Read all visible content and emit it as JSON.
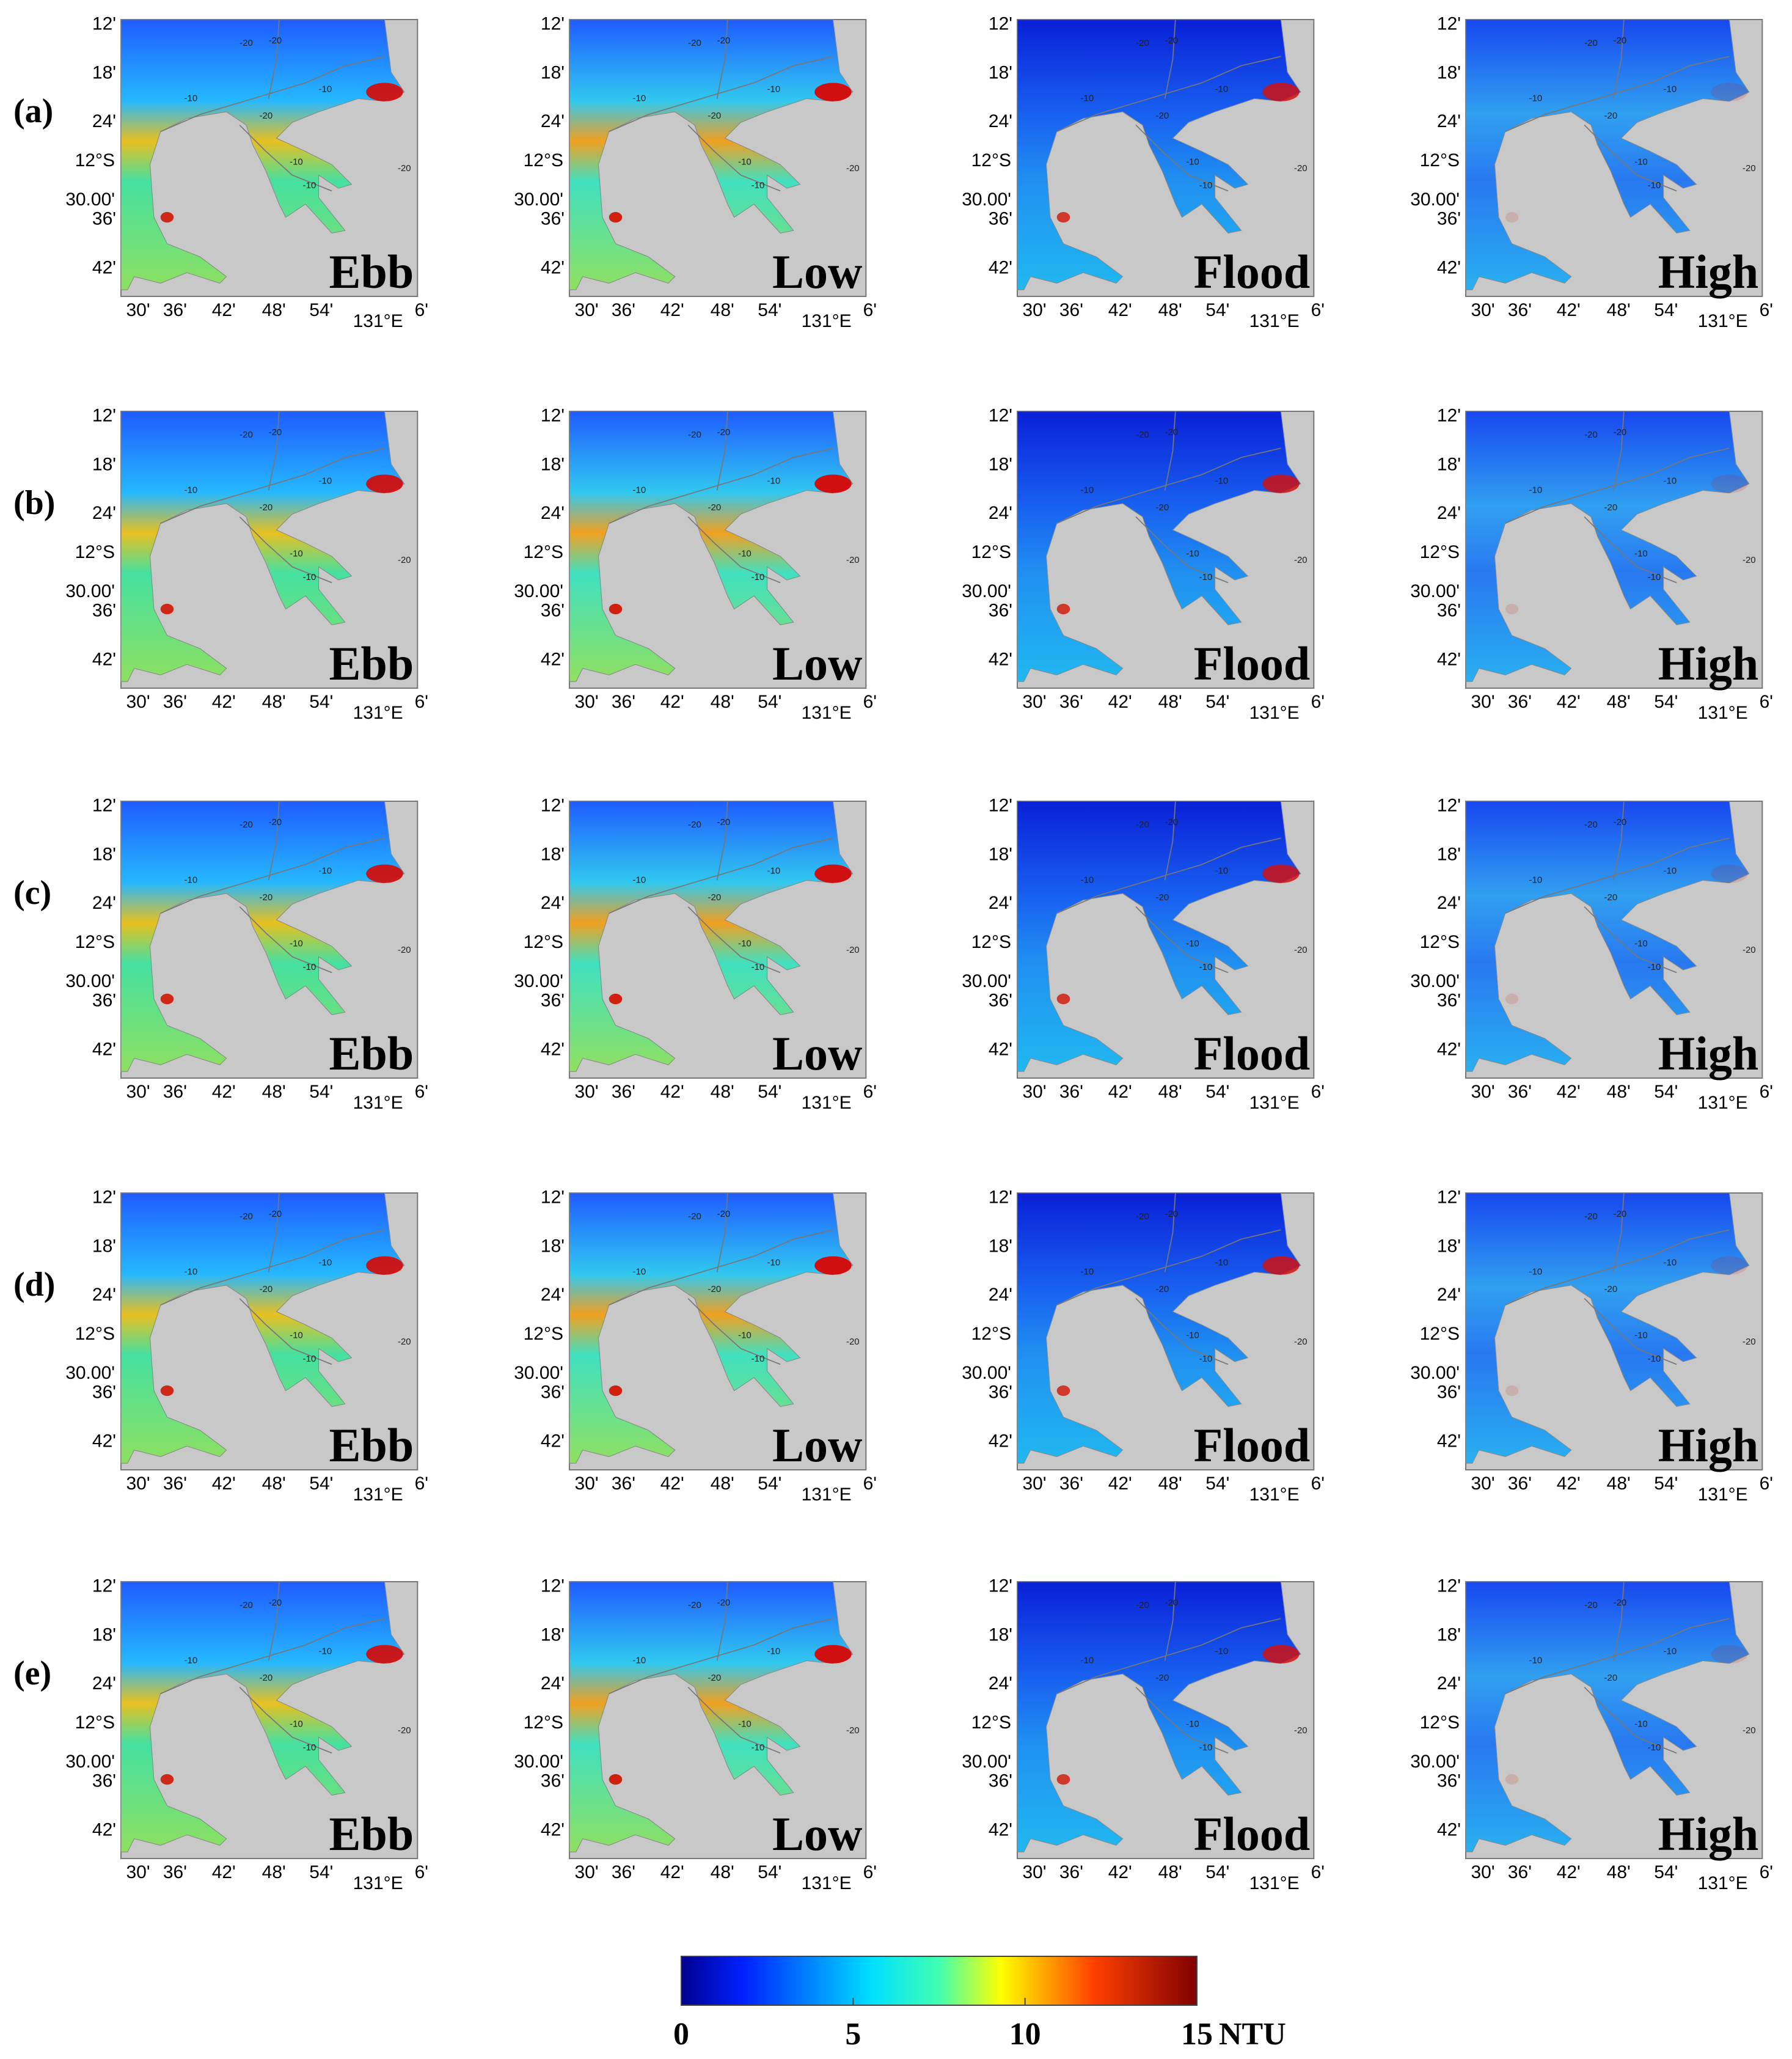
{
  "row_labels": [
    "(a)",
    "(b)",
    "(c)",
    "(d)",
    "(e)"
  ],
  "phases": [
    "Ebb",
    "Low",
    "Flood",
    "High"
  ],
  "axes": {
    "lat_ticks": [
      "12'",
      "18'",
      "24'",
      "30.00'",
      "36'",
      "42'"
    ],
    "lat_degree": "12°S",
    "lon_ticks": [
      "30'",
      "36'",
      "42'",
      "48'",
      "54'",
      "6'"
    ],
    "lon_degree": "131°E"
  },
  "contour_labels": [
    "-10",
    "-20"
  ],
  "colorbar": {
    "range": [
      0,
      15
    ],
    "ticks": [
      0,
      5,
      10,
      15
    ],
    "unit": "NTU"
  }
}
